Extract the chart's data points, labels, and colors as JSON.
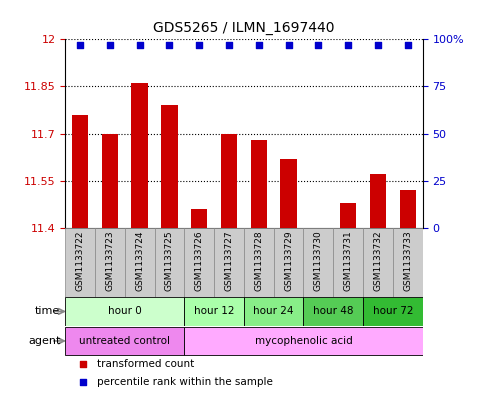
{
  "title": "GDS5265 / ILMN_1697440",
  "samples": [
    "GSM1133722",
    "GSM1133723",
    "GSM1133724",
    "GSM1133725",
    "GSM1133726",
    "GSM1133727",
    "GSM1133728",
    "GSM1133729",
    "GSM1133730",
    "GSM1133731",
    "GSM1133732",
    "GSM1133733"
  ],
  "bar_values": [
    11.76,
    11.7,
    11.86,
    11.79,
    11.46,
    11.7,
    11.68,
    11.62,
    11.4,
    11.48,
    11.57,
    11.52
  ],
  "percentile_values": [
    97,
    97,
    97,
    97,
    97,
    97,
    97,
    97,
    97,
    97,
    97,
    97
  ],
  "bar_color": "#cc0000",
  "percentile_color": "#0000cc",
  "ylim_left": [
    11.4,
    12.0
  ],
  "ylim_right": [
    0,
    100
  ],
  "yticks_left": [
    11.4,
    11.55,
    11.7,
    11.85,
    12.0
  ],
  "yticks_right": [
    0,
    25,
    50,
    75,
    100
  ],
  "ytick_labels_left": [
    "11.4",
    "11.55",
    "11.7",
    "11.85",
    "12"
  ],
  "ytick_labels_right": [
    "0",
    "25",
    "50",
    "75",
    "100%"
  ],
  "hlines": [
    11.55,
    11.7,
    11.85
  ],
  "time_groups": [
    {
      "label": "hour 0",
      "start": 0,
      "end": 4,
      "color": "#ccffcc"
    },
    {
      "label": "hour 12",
      "start": 4,
      "end": 6,
      "color": "#aaffaa"
    },
    {
      "label": "hour 24",
      "start": 6,
      "end": 8,
      "color": "#88ee88"
    },
    {
      "label": "hour 48",
      "start": 8,
      "end": 10,
      "color": "#55cc55"
    },
    {
      "label": "hour 72",
      "start": 10,
      "end": 12,
      "color": "#33bb33"
    }
  ],
  "agent_groups": [
    {
      "label": "untreated control",
      "start": 0,
      "end": 4,
      "color": "#ee88ee"
    },
    {
      "label": "mycophenolic acid",
      "start": 4,
      "end": 12,
      "color": "#ffaaff"
    }
  ],
  "legend_items": [
    {
      "label": "transformed count",
      "color": "#cc0000"
    },
    {
      "label": "percentile rank within the sample",
      "color": "#0000cc"
    }
  ],
  "bar_width": 0.55,
  "background_color": "#ffffff",
  "sample_box_color": "#cccccc",
  "sample_box_edge": "#888888"
}
